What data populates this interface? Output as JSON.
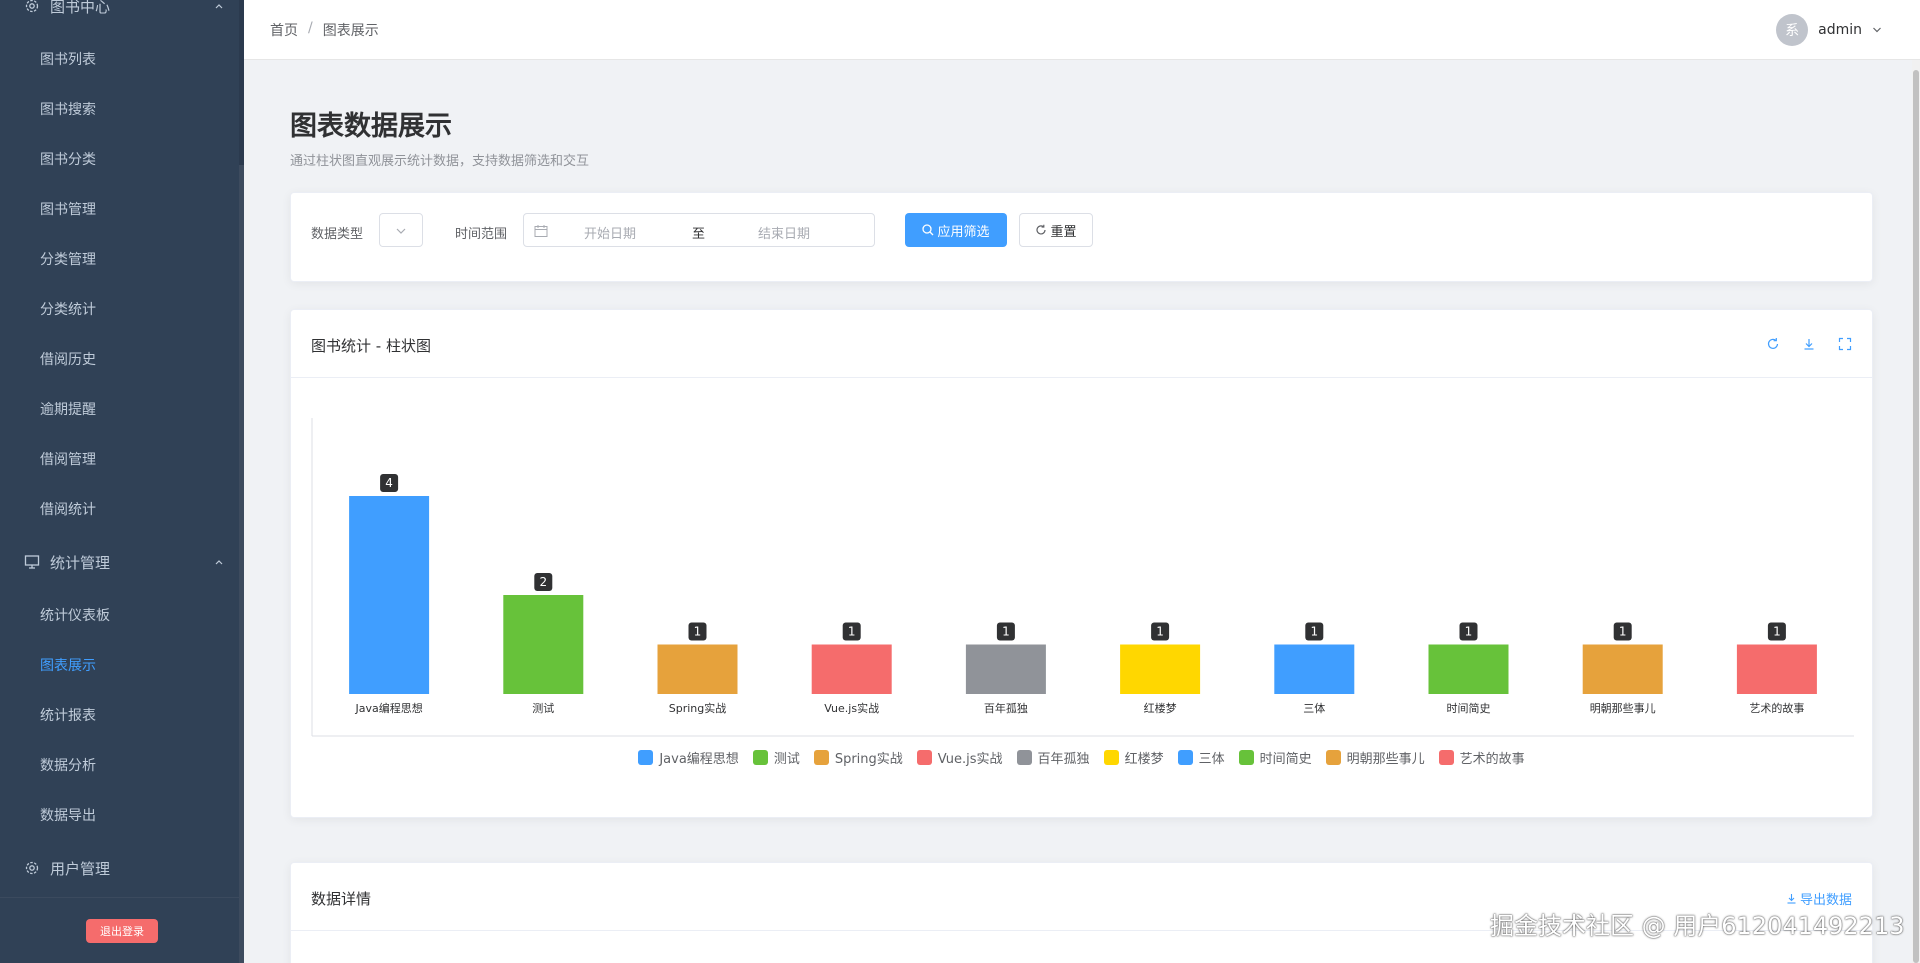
{
  "sidebar": {
    "group_books": "图书中心",
    "items_books": [
      "图书列表",
      "图书搜索",
      "图书分类",
      "图书管理",
      "分类管理",
      "分类统计",
      "借阅历史",
      "逾期提醒",
      "借阅管理",
      "借阅统计"
    ],
    "group_stats": "统计管理",
    "items_stats": [
      "统计仪表板",
      "图表展示",
      "统计报表",
      "数据分析",
      "数据导出"
    ],
    "active_item": "图表展示",
    "group_users": "用户管理",
    "logout": "退出登录"
  },
  "header": {
    "breadcrumb": [
      "首页",
      "图表展示"
    ],
    "avatar_text": "系",
    "username": "admin"
  },
  "page": {
    "title": "图表数据展示",
    "subtitle": "通过柱状图直观展示统计数据，支持数据筛选和交互"
  },
  "filters": {
    "type_label": "数据类型",
    "range_label": "时间范围",
    "start_placeholder": "开始日期",
    "range_separator": "至",
    "end_placeholder": "结束日期",
    "apply_button": "应用筛选",
    "reset_button": "重置"
  },
  "chart_card": {
    "title": "图书统计 - 柱状图",
    "tools": [
      "refresh-icon",
      "download-icon",
      "fullscreen-icon"
    ]
  },
  "chart_data": {
    "type": "bar",
    "categories": [
      "Java编程思想",
      "测试",
      "Spring实战",
      "Vue.js实战",
      "百年孤独",
      "红楼梦",
      "三体",
      "时间简史",
      "明朝那些事儿",
      "艺术的故事"
    ],
    "values": [
      4,
      2,
      1,
      1,
      1,
      1,
      1,
      1,
      1,
      1
    ],
    "colors": [
      "#409eff",
      "#67c23a",
      "#e6a23c",
      "#f56c6c",
      "#909399",
      "#ffd700",
      "#409eff",
      "#67c23a",
      "#e6a23c",
      "#f56c6c"
    ],
    "title": "",
    "xlabel": "",
    "ylabel": "",
    "ylim": [
      0,
      5
    ],
    "grid": false,
    "legend": "bottom-center",
    "data_labels": true
  },
  "detail_card": {
    "title": "数据详情",
    "export_link": "导出数据"
  },
  "watermark": "掘金技术社区 @ 用户612041492213"
}
